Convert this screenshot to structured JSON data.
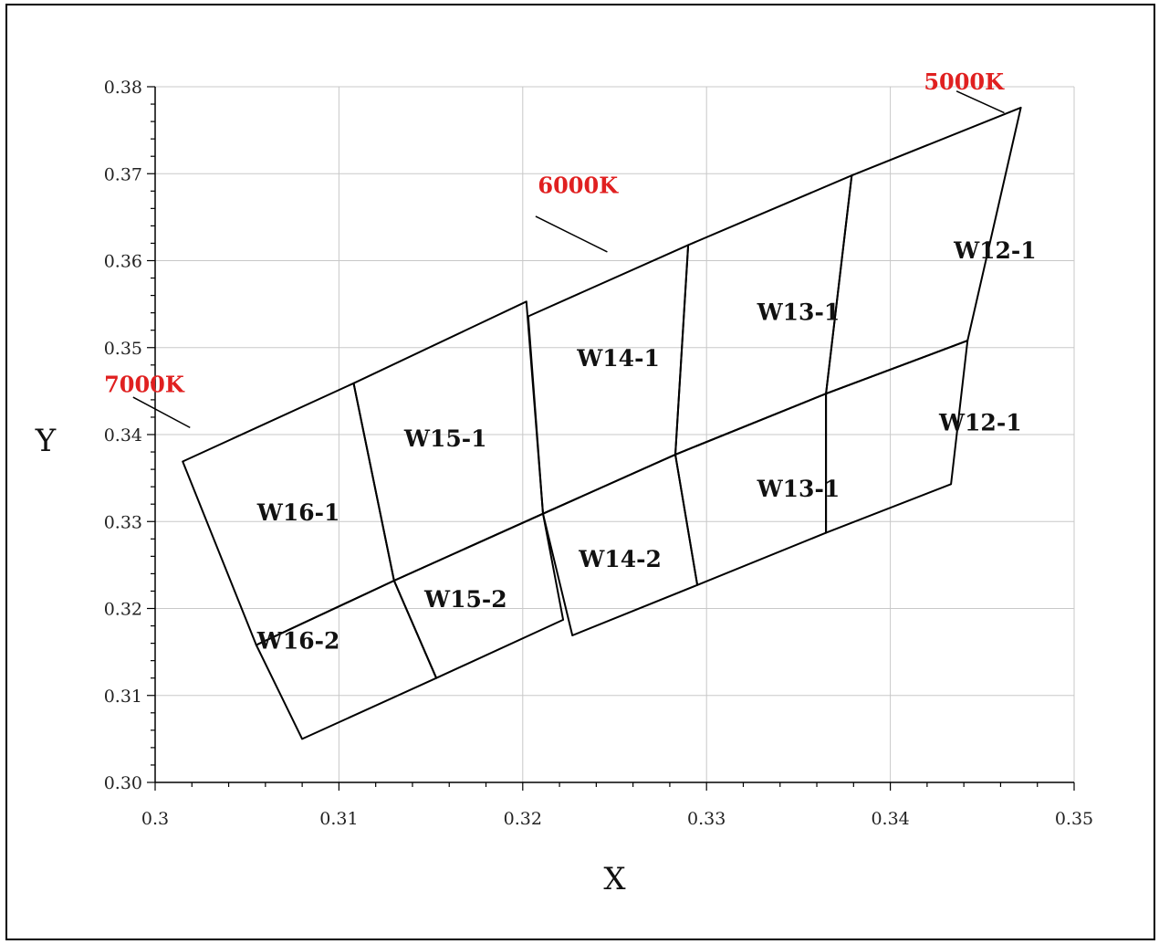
{
  "chart_data": {
    "type": "scatter",
    "title": "",
    "xlabel": "X",
    "ylabel": "Y",
    "xlim": [
      0.3,
      0.35
    ],
    "ylim": [
      0.3,
      0.38
    ],
    "grid": true,
    "x_ticks": [
      "0.3",
      "0.31",
      "0.32",
      "0.33",
      "0.34",
      "0.35"
    ],
    "y_ticks": [
      "0.30",
      "0.31",
      "0.32",
      "0.33",
      "0.34",
      "0.35",
      "0.36",
      "0.37",
      "0.38"
    ],
    "bins": [
      {
        "name": "W16-1",
        "label_at": [
          0.3078,
          0.3311
        ],
        "vertices": [
          [
            0.3015,
            0.3369
          ],
          [
            0.3108,
            0.3459
          ],
          [
            0.313,
            0.3232
          ],
          [
            0.3055,
            0.3158
          ]
        ]
      },
      {
        "name": "W16-2",
        "label_at": [
          0.3078,
          0.3163
        ],
        "vertices": [
          [
            0.3055,
            0.3158
          ],
          [
            0.313,
            0.3232
          ],
          [
            0.3153,
            0.312
          ],
          [
            0.308,
            0.305
          ]
        ]
      },
      {
        "name": "W15-1",
        "label_at": [
          0.3158,
          0.3396
        ],
        "vertices": [
          [
            0.3108,
            0.3459
          ],
          [
            0.3202,
            0.3553
          ],
          [
            0.3211,
            0.3309
          ],
          [
            0.313,
            0.3232
          ]
        ]
      },
      {
        "name": "W15-2",
        "label_at": [
          0.3169,
          0.3211
        ],
        "vertices": [
          [
            0.313,
            0.3232
          ],
          [
            0.3211,
            0.3309
          ],
          [
            0.3222,
            0.3187
          ],
          [
            0.3153,
            0.312
          ]
        ]
      },
      {
        "name": "W14-1",
        "label_at": [
          0.3252,
          0.3488
        ],
        "vertices": [
          [
            0.3203,
            0.3536
          ],
          [
            0.329,
            0.3618
          ],
          [
            0.3283,
            0.3377
          ],
          [
            0.3211,
            0.3309
          ]
        ]
      },
      {
        "name": "W14-2",
        "label_at": [
          0.3253,
          0.3257
        ],
        "vertices": [
          [
            0.3211,
            0.3309
          ],
          [
            0.3283,
            0.3377
          ],
          [
            0.3295,
            0.3227
          ],
          [
            0.3227,
            0.3169
          ]
        ]
      },
      {
        "name": "W13-1",
        "label_at": [
          0.335,
          0.3541
        ],
        "vertices": [
          [
            0.329,
            0.3618
          ],
          [
            0.3379,
            0.3698
          ],
          [
            0.3365,
            0.3447
          ],
          [
            0.3283,
            0.3377
          ]
        ]
      },
      {
        "name": "W13-1",
        "label_at": [
          0.335,
          0.3338
        ],
        "vertices": [
          [
            0.3283,
            0.3377
          ],
          [
            0.3365,
            0.3447
          ],
          [
            0.3365,
            0.3287
          ],
          [
            0.3295,
            0.3227
          ]
        ]
      },
      {
        "name": "W12-1",
        "label_at": [
          0.3457,
          0.3612
        ],
        "vertices": [
          [
            0.3379,
            0.3698
          ],
          [
            0.3471,
            0.3776
          ],
          [
            0.3442,
            0.3508
          ],
          [
            0.3365,
            0.3447
          ]
        ]
      },
      {
        "name": "W12-1",
        "label_at": [
          0.3449,
          0.3414
        ],
        "vertices": [
          [
            0.3365,
            0.3447
          ],
          [
            0.3442,
            0.3508
          ],
          [
            0.3433,
            0.3343
          ],
          [
            0.3365,
            0.3287
          ]
        ]
      }
    ],
    "annotations": [
      {
        "text": "5000K",
        "label_at": [
          0.344,
          0.3805
        ],
        "leader": [
          [
            0.3436,
            0.3795
          ],
          [
            0.3462,
            0.377
          ]
        ]
      },
      {
        "text": "6000K",
        "label_at": [
          0.323,
          0.3686
        ],
        "leader": [
          [
            0.3207,
            0.3651
          ],
          [
            0.3246,
            0.361
          ]
        ]
      },
      {
        "text": "7000K",
        "label_at": [
          0.2994,
          0.3457
        ],
        "leader": [
          [
            0.2988,
            0.3443
          ],
          [
            0.3019,
            0.3408
          ]
        ]
      }
    ]
  }
}
